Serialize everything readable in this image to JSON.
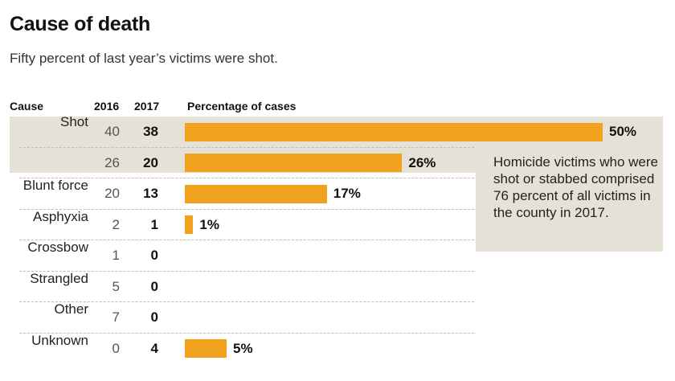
{
  "title": "Cause of death",
  "subtitle": "Fifty percent of last year’s victims were shot.",
  "note": "Homicide victims who were shot or stabbed comprised 76 percent of all victims in the county in 2017.",
  "colors": {
    "bar": "#f0a21f",
    "highlight": "#e6e1d6"
  },
  "chart_data": {
    "type": "table",
    "columns": [
      "Cause",
      "2016",
      "2017",
      "Percentage of cases"
    ],
    "rows": [
      {
        "cause": "Shot",
        "y2016": 40,
        "y2017": 38,
        "pct": 50,
        "pct_label": "50%",
        "highlight": true
      },
      {
        "cause": "",
        "y2016": 26,
        "y2017": 20,
        "pct": 26,
        "pct_label": "26%",
        "highlight": true
      },
      {
        "cause": "Blunt force",
        "y2016": 20,
        "y2017": 13,
        "pct": 17,
        "pct_label": "17%",
        "highlight": false
      },
      {
        "cause": "Asphyxia",
        "y2016": 2,
        "y2017": 1,
        "pct": 1,
        "pct_label": "1%",
        "highlight": false
      },
      {
        "cause": "Crossbow",
        "y2016": 1,
        "y2017": 0,
        "pct": 0,
        "pct_label": "",
        "highlight": false
      },
      {
        "cause": "Strangled",
        "y2016": 5,
        "y2017": 0,
        "pct": 0,
        "pct_label": "",
        "highlight": false
      },
      {
        "cause": "Other",
        "y2016": 7,
        "y2017": 0,
        "pct": 0,
        "pct_label": "",
        "highlight": false
      },
      {
        "cause": "Unknown",
        "y2016": 0,
        "y2017": 4,
        "pct": 5,
        "pct_label": "5%",
        "highlight": false
      }
    ]
  }
}
